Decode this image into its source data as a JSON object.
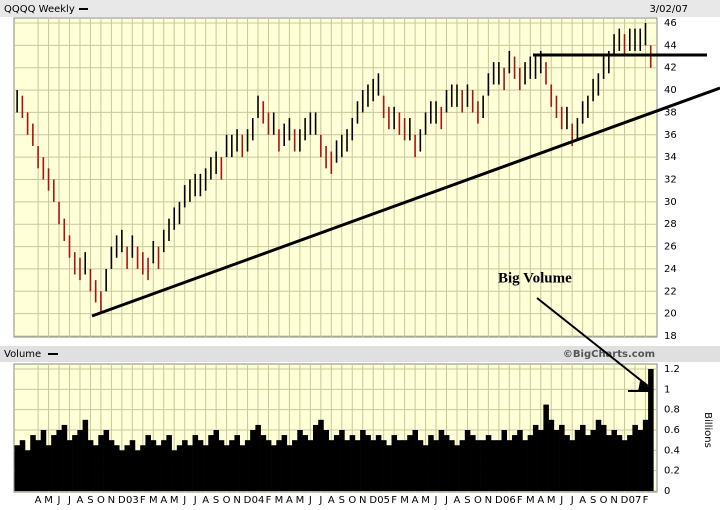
{
  "chart_data": [
    {
      "type": "ohlc",
      "title": "QQQQ Weekly",
      "date": "3/02/07",
      "x": [
        -2,
        -1.5,
        -1,
        -0.5,
        0,
        0.5,
        1,
        1.5,
        2,
        2.5,
        3,
        3.5,
        4,
        4.5,
        5,
        5.5,
        6,
        6.5,
        7,
        7.5,
        8,
        8.5,
        9,
        9.5,
        10,
        10.5,
        11,
        11.5,
        12,
        12.5,
        13,
        13.5,
        14,
        14.5,
        15,
        15.5,
        16,
        16.5,
        17,
        17.5,
        18,
        18.5,
        19,
        19.5,
        20,
        20.5,
        21,
        21.5,
        22,
        22.5,
        23,
        23.5,
        24,
        24.5,
        25,
        25.5,
        26,
        26.5,
        27,
        27.5,
        28,
        28.5,
        29,
        29.5,
        30,
        30.5,
        31,
        31.5,
        32,
        32.5,
        33,
        33.5,
        34,
        34.5,
        35,
        35.5,
        36,
        36.5,
        37,
        37.5,
        38,
        38.5,
        39,
        39.5,
        40,
        40.5,
        41,
        41.5,
        42,
        42.5,
        43,
        43.5,
        44,
        44.5,
        45,
        45.5,
        46,
        46.5,
        47,
        47.5,
        48,
        48.5,
        49,
        49.5,
        50,
        50.5,
        51,
        51.5,
        52,
        52.5,
        53,
        53.5,
        54,
        54.5,
        55,
        55.5,
        56,
        56.5,
        57,
        57.5,
        58,
        58.5
      ],
      "high": [
        40,
        39.5,
        38,
        37,
        35,
        34,
        33,
        32,
        30,
        28.5,
        27,
        25.5,
        25,
        25.5,
        24,
        23,
        22,
        24,
        26,
        27,
        27.5,
        26,
        27,
        26,
        25.5,
        25,
        26.5,
        26,
        27.5,
        28.5,
        29.5,
        30,
        31.5,
        32,
        32.5,
        32.5,
        33,
        34,
        34.5,
        34,
        36,
        36,
        36.5,
        36,
        36.5,
        37.5,
        39.5,
        39,
        38,
        38,
        36.5,
        37,
        37.5,
        36.5,
        36.5,
        37.5,
        38,
        38,
        36,
        35,
        34.5,
        35.5,
        36,
        36.5,
        37.5,
        39,
        40,
        40.5,
        41,
        41.5,
        39.5,
        38.5,
        38.5,
        38,
        37.5,
        37.5,
        36,
        36.5,
        38,
        39,
        39,
        38.5,
        40,
        40.5,
        40.5,
        40,
        40.5,
        40,
        39,
        39.5,
        41.5,
        42.5,
        42.5,
        42,
        43.5,
        43,
        42,
        42.5,
        43,
        43,
        43.5,
        42.5,
        40.5,
        39.5,
        38.5,
        38.5,
        37,
        37.5,
        39,
        39.5,
        41,
        41.5,
        43,
        43.5,
        45,
        45.5,
        45,
        45.5,
        45.5,
        45.5,
        46,
        44
      ],
      "low": [
        38,
        37.5,
        36,
        35,
        33,
        32,
        31,
        30,
        28,
        26.5,
        25,
        23.5,
        23,
        23.5,
        22,
        21,
        20,
        22,
        24,
        25,
        25.5,
        24,
        25,
        24,
        23.5,
        23,
        24.5,
        24,
        25.5,
        26.5,
        27.5,
        28,
        29.5,
        30,
        30.5,
        30.5,
        31,
        32,
        32.5,
        32,
        34,
        34,
        34.5,
        34,
        34.5,
        35.5,
        37.5,
        37,
        36,
        36,
        34.5,
        35,
        35.5,
        34.5,
        34.5,
        35.5,
        36,
        36,
        34,
        33,
        32.5,
        33.5,
        34,
        34.5,
        35.5,
        37,
        38,
        38.5,
        39,
        39.5,
        37.5,
        36.5,
        36.5,
        36,
        35.5,
        35.5,
        34,
        34.5,
        36,
        37,
        37,
        36.5,
        38,
        38.5,
        38.5,
        38,
        38.5,
        38,
        37,
        37.5,
        39.5,
        40.5,
        40.5,
        40,
        41.5,
        41,
        40,
        40.5,
        41,
        41,
        41.5,
        40.5,
        38.5,
        37.5,
        36.5,
        36.5,
        35,
        35.5,
        37,
        37.5,
        39,
        39.5,
        41,
        41.5,
        43,
        43.5,
        43,
        43.5,
        43.5,
        43.5,
        44,
        42
      ],
      "color": "#000000",
      "down_color": "#b01010",
      "xlim": [
        -2.3,
        59.1
      ],
      "xticks": [
        {
          "value": 0,
          "label": "A"
        },
        {
          "value": 1,
          "label": "M"
        },
        {
          "value": 2,
          "label": "J"
        },
        {
          "value": 3,
          "label": "J"
        },
        {
          "value": 4,
          "label": "A"
        },
        {
          "value": 5,
          "label": "S"
        },
        {
          "value": 6,
          "label": "O"
        },
        {
          "value": 7,
          "label": "N"
        },
        {
          "value": 8,
          "label": "D"
        },
        {
          "value": 9,
          "label": "03"
        },
        {
          "value": 10,
          "label": "F"
        },
        {
          "value": 11,
          "label": "M"
        },
        {
          "value": 12,
          "label": "A"
        },
        {
          "value": 13,
          "label": "M"
        },
        {
          "value": 14,
          "label": "J"
        },
        {
          "value": 15,
          "label": "J"
        },
        {
          "value": 16,
          "label": "A"
        },
        {
          "value": 17,
          "label": "S"
        },
        {
          "value": 18,
          "label": "O"
        },
        {
          "value": 19,
          "label": "N"
        },
        {
          "value": 20,
          "label": "D"
        },
        {
          "value": 21,
          "label": "04"
        },
        {
          "value": 22,
          "label": "F"
        },
        {
          "value": 23,
          "label": "M"
        },
        {
          "value": 24,
          "label": "A"
        },
        {
          "value": 25,
          "label": "M"
        },
        {
          "value": 26,
          "label": "J"
        },
        {
          "value": 27,
          "label": "J"
        },
        {
          "value": 28,
          "label": "A"
        },
        {
          "value": 29,
          "label": "S"
        },
        {
          "value": 30,
          "label": "O"
        },
        {
          "value": 31,
          "label": "N"
        },
        {
          "value": 32,
          "label": "D"
        },
        {
          "value": 33,
          "label": "05"
        },
        {
          "value": 34,
          "label": "F"
        },
        {
          "value": 35,
          "label": "M"
        },
        {
          "value": 36,
          "label": "A"
        },
        {
          "value": 37,
          "label": "M"
        },
        {
          "value": 38,
          "label": "J"
        },
        {
          "value": 39,
          "label": "J"
        },
        {
          "value": 40,
          "label": "A"
        },
        {
          "value": 41,
          "label": "S"
        },
        {
          "value": 42,
          "label": "O"
        },
        {
          "value": 43,
          "label": "N"
        },
        {
          "value": 44,
          "label": "D"
        },
        {
          "value": 45,
          "label": "06"
        },
        {
          "value": 46,
          "label": "F"
        },
        {
          "value": 47,
          "label": "M"
        },
        {
          "value": 48,
          "label": "A"
        },
        {
          "value": 49,
          "label": "M"
        },
        {
          "value": 50,
          "label": "J"
        },
        {
          "value": 51,
          "label": "J"
        },
        {
          "value": 52,
          "label": "A"
        },
        {
          "value": 53,
          "label": "S"
        },
        {
          "value": 54,
          "label": "O"
        },
        {
          "value": 55,
          "label": "N"
        },
        {
          "value": 56,
          "label": "D"
        },
        {
          "value": 57,
          "label": "07"
        },
        {
          "value": 58,
          "label": "F"
        }
      ],
      "ylim": [
        18,
        46
      ],
      "yticks": [
        18,
        20,
        22,
        24,
        26,
        28,
        30,
        32,
        34,
        36,
        38,
        40,
        42,
        44,
        46
      ],
      "grid": true,
      "annotation": "Big Volume",
      "source": "©BigCharts.com"
    },
    {
      "type": "volume",
      "title": "Volume",
      "y_label": "Billions",
      "color": "#000000",
      "x": [
        -2,
        -1.5,
        -1,
        -0.5,
        0,
        0.5,
        1,
        1.5,
        2,
        2.5,
        3,
        3.5,
        4,
        4.5,
        5,
        5.5,
        6,
        6.5,
        7,
        7.5,
        8,
        8.5,
        9,
        9.5,
        10,
        10.5,
        11,
        11.5,
        12,
        12.5,
        13,
        13.5,
        14,
        14.5,
        15,
        15.5,
        16,
        16.5,
        17,
        17.5,
        18,
        18.5,
        19,
        19.5,
        20,
        20.5,
        21,
        21.5,
        22,
        22.5,
        23,
        23.5,
        24,
        24.5,
        25,
        25.5,
        26,
        26.5,
        27,
        27.5,
        28,
        28.5,
        29,
        29.5,
        30,
        30.5,
        31,
        31.5,
        32,
        32.5,
        33,
        33.5,
        34,
        34.5,
        35,
        35.5,
        36,
        36.5,
        37,
        37.5,
        38,
        38.5,
        39,
        39.5,
        40,
        40.5,
        41,
        41.5,
        42,
        42.5,
        43,
        43.5,
        44,
        44.5,
        45,
        45.5,
        46,
        46.5,
        47,
        47.5,
        48,
        48.5,
        49,
        49.5,
        50,
        50.5,
        51,
        51.5,
        52,
        52.5,
        53,
        53.5,
        54,
        54.5,
        55,
        55.5,
        56,
        56.5,
        57,
        57.5,
        58,
        58.5
      ],
      "values": [
        0.45,
        0.5,
        0.4,
        0.55,
        0.5,
        0.6,
        0.45,
        0.55,
        0.6,
        0.65,
        0.5,
        0.55,
        0.6,
        0.7,
        0.5,
        0.45,
        0.55,
        0.6,
        0.5,
        0.45,
        0.4,
        0.45,
        0.5,
        0.4,
        0.45,
        0.55,
        0.5,
        0.45,
        0.5,
        0.55,
        0.4,
        0.45,
        0.5,
        0.45,
        0.55,
        0.5,
        0.45,
        0.55,
        0.6,
        0.5,
        0.45,
        0.5,
        0.55,
        0.45,
        0.5,
        0.6,
        0.65,
        0.55,
        0.5,
        0.45,
        0.5,
        0.55,
        0.45,
        0.5,
        0.6,
        0.55,
        0.5,
        0.65,
        0.7,
        0.6,
        0.5,
        0.55,
        0.6,
        0.5,
        0.55,
        0.5,
        0.6,
        0.55,
        0.5,
        0.55,
        0.5,
        0.45,
        0.55,
        0.5,
        0.5,
        0.55,
        0.6,
        0.5,
        0.45,
        0.55,
        0.5,
        0.6,
        0.55,
        0.5,
        0.45,
        0.5,
        0.6,
        0.55,
        0.5,
        0.5,
        0.55,
        0.5,
        0.5,
        0.6,
        0.5,
        0.55,
        0.6,
        0.5,
        0.55,
        0.65,
        0.6,
        0.85,
        0.7,
        0.6,
        0.65,
        0.55,
        0.5,
        0.6,
        0.65,
        0.55,
        0.6,
        0.7,
        0.65,
        0.55,
        0.6,
        0.55,
        0.5,
        0.55,
        0.65,
        0.6,
        0.7,
        1.2
      ],
      "xlim": [
        -2.3,
        59.1
      ],
      "ylim": [
        0,
        1.2
      ],
      "yticks": [
        0,
        0.2,
        0.4,
        0.6,
        0.8,
        1,
        1.2
      ],
      "grid": true
    }
  ]
}
